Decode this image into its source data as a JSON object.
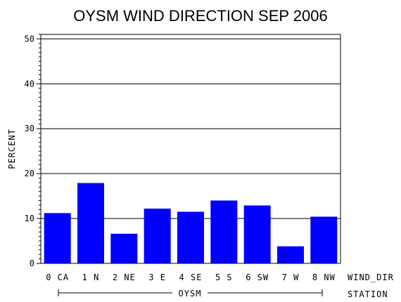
{
  "chart_data": {
    "type": "bar",
    "title": "OYSM WIND DIRECTION SEP 2006",
    "ylabel": "PERCENT",
    "xlabel": "WIND_DIR",
    "group_axis_label": "STATION",
    "group_name": "OYSM",
    "categories": [
      "0 CA",
      "1 N",
      "2 NE",
      "3 E",
      "4 SE",
      "5 S",
      "6 SW",
      "7 W",
      "8 NW"
    ],
    "values": [
      11.2,
      17.9,
      6.6,
      12.2,
      11.5,
      14.0,
      12.9,
      3.8,
      10.4
    ],
    "ylim": [
      0,
      51
    ],
    "yticks": [
      0,
      10,
      20,
      30,
      40,
      50
    ],
    "grid": "horizontal",
    "bar_color": "#0000ff",
    "grid_color": "#000000"
  }
}
